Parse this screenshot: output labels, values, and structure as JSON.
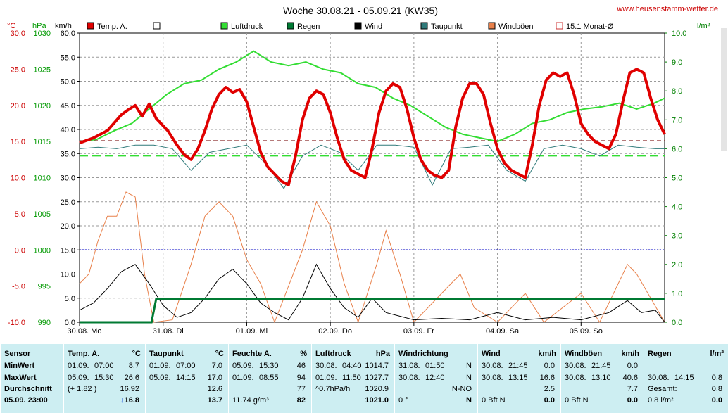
{
  "chart_data": {
    "type": "line",
    "title": "Woche 30.08.21 - 05.09.21 (KW35)",
    "source": "www.heusenstamm-wetter.de",
    "units": {
      "temp": "°C",
      "pressure": "hPa",
      "wind": "km/h",
      "rain": "l/m²"
    },
    "axes": {
      "temp": {
        "ticks": [
          "30.0",
          "25.0",
          "20.0",
          "15.0",
          "10.0",
          "5.0",
          "0.0",
          "-5.0",
          "-10.0"
        ],
        "range": [
          -10,
          30
        ],
        "color": "#cc0000"
      },
      "pressure": {
        "ticks": [
          "1030",
          "1025",
          "1020",
          "1015",
          "1010",
          "1005",
          "1000",
          "995",
          "990"
        ],
        "range": [
          990,
          1030
        ],
        "color": "#009900"
      },
      "wind": {
        "ticks": [
          "60.0",
          "55.0",
          "50.0",
          "45.0",
          "40.0",
          "35.0",
          "30.0",
          "25.0",
          "20.0",
          "15.0",
          "10.0",
          "5.0",
          "0.0"
        ],
        "range": [
          0,
          60
        ],
        "color": "#000000"
      },
      "rain": {
        "ticks": [
          "10.0",
          "9.0",
          "8.0",
          "7.0",
          "6.0",
          "5.0",
          "4.0",
          "3.0",
          "2.0",
          "1.0",
          "0.0"
        ],
        "range": [
          0,
          10
        ],
        "color": "#008000"
      }
    },
    "days": [
      "30.08. Mo",
      "31.08. Di",
      "01.09. Mi",
      "02.09. Do",
      "03.09. Fr",
      "04.09. Sa",
      "05.09. So"
    ],
    "legend": [
      {
        "name": "Temp. A.",
        "color": "#e00000",
        "style": "fill",
        "text_color": "#cc0000"
      },
      {
        "name": "",
        "color": "#ffffff",
        "style": "fill",
        "text_color": "#000000"
      },
      {
        "name": "Luftdruck",
        "color": "#33dd33",
        "style": "fill",
        "text_color": "#000000"
      },
      {
        "name": "Regen",
        "color": "#007a33",
        "style": "fill",
        "text_color": "#000000"
      },
      {
        "name": "Wind",
        "color": "#000000",
        "style": "fill",
        "text_color": "#000000"
      },
      {
        "name": "Taupunkt",
        "color": "#2f7a7a",
        "style": "fill",
        "text_color": "#cc0000"
      },
      {
        "name": "Windböen",
        "color": "#e8804a",
        "style": "fill",
        "text_color": "#000000"
      },
      {
        "name": "15.1 Monat-Ø",
        "color": "#cc3333",
        "style": "outline",
        "text_color": "#cc0000"
      }
    ],
    "reference_lines": {
      "temp_month_avg": 15.1,
      "freezing": 0.0
    },
    "series": {
      "temperature": [
        [
          0,
          14.8
        ],
        [
          6,
          15.5
        ],
        [
          12,
          16.5
        ],
        [
          18,
          18.7
        ],
        [
          21,
          19.4
        ],
        [
          24,
          20.0
        ],
        [
          27,
          18.5
        ],
        [
          30,
          20.2
        ],
        [
          33,
          18.2
        ],
        [
          38,
          16.5
        ],
        [
          42,
          14.5
        ],
        [
          45,
          13.2
        ],
        [
          48,
          12.5
        ],
        [
          51,
          14.0
        ],
        [
          54,
          16.5
        ],
        [
          57,
          19.5
        ],
        [
          60,
          21.5
        ],
        [
          63,
          22.5
        ],
        [
          66,
          21.8
        ],
        [
          69,
          22.2
        ],
        [
          72,
          20.5
        ],
        [
          75,
          17.0
        ],
        [
          78,
          13.5
        ],
        [
          81,
          11.5
        ],
        [
          84,
          10.5
        ],
        [
          87,
          9.5
        ],
        [
          90,
          9.0
        ],
        [
          93,
          13.0
        ],
        [
          96,
          18.0
        ],
        [
          99,
          21.0
        ],
        [
          102,
          22.0
        ],
        [
          105,
          21.5
        ],
        [
          108,
          19.0
        ],
        [
          111,
          15.5
        ],
        [
          114,
          12.5
        ],
        [
          117,
          11.0
        ],
        [
          120,
          10.5
        ],
        [
          123,
          10.0
        ],
        [
          126,
          14.0
        ],
        [
          129,
          19.0
        ],
        [
          132,
          22.0
        ],
        [
          135,
          23.0
        ],
        [
          138,
          22.5
        ],
        [
          141,
          19.5
        ],
        [
          144,
          15.5
        ],
        [
          147,
          12.5
        ],
        [
          150,
          11.0
        ],
        [
          153,
          10.3
        ],
        [
          156,
          10.0
        ],
        [
          159,
          11.0
        ],
        [
          162,
          17.0
        ],
        [
          165,
          21.0
        ],
        [
          168,
          23.0
        ],
        [
          171,
          23.0
        ],
        [
          174,
          21.5
        ],
        [
          177,
          17.5
        ],
        [
          180,
          14.0
        ],
        [
          183,
          12.0
        ],
        [
          186,
          11.0
        ],
        [
          189,
          10.5
        ],
        [
          192,
          10.0
        ],
        [
          195,
          14.5
        ],
        [
          198,
          20.0
        ],
        [
          201,
          23.5
        ],
        [
          204,
          24.5
        ],
        [
          207,
          24.0
        ],
        [
          210,
          24.5
        ],
        [
          213,
          21.5
        ],
        [
          216,
          17.5
        ],
        [
          219,
          16.0
        ],
        [
          222,
          15.0
        ],
        [
          225,
          14.5
        ],
        [
          228,
          14.0
        ],
        [
          231,
          16.0
        ],
        [
          234,
          20.5
        ],
        [
          237,
          24.5
        ],
        [
          240,
          25.0
        ],
        [
          243,
          24.5
        ],
        [
          246,
          21.0
        ],
        [
          249,
          18.0
        ],
        [
          252,
          16.0
        ]
      ],
      "dewpoint": [
        [
          0,
          14.0
        ],
        [
          8,
          14.2
        ],
        [
          16,
          14.0
        ],
        [
          24,
          14.5
        ],
        [
          32,
          14.5
        ],
        [
          40,
          14.0
        ],
        [
          48,
          11.0
        ],
        [
          56,
          13.5
        ],
        [
          64,
          14.0
        ],
        [
          72,
          14.5
        ],
        [
          80,
          12.0
        ],
        [
          88,
          8.5
        ],
        [
          96,
          13.0
        ],
        [
          104,
          14.5
        ],
        [
          112,
          13.5
        ],
        [
          120,
          11.0
        ],
        [
          128,
          14.5
        ],
        [
          136,
          14.5
        ],
        [
          144,
          14.2
        ],
        [
          152,
          9.0
        ],
        [
          160,
          14.0
        ],
        [
          168,
          14.2
        ],
        [
          176,
          14.5
        ],
        [
          184,
          11.0
        ],
        [
          192,
          9.5
        ],
        [
          200,
          14.0
        ],
        [
          208,
          14.5
        ],
        [
          216,
          14.0
        ],
        [
          224,
          13.0
        ],
        [
          232,
          14.5
        ],
        [
          240,
          14.2
        ],
        [
          248,
          14.0
        ],
        [
          252,
          14.0
        ]
      ],
      "pressure": [
        [
          0,
          1015.0
        ],
        [
          10,
          1015.3
        ],
        [
          20,
          1016.5
        ],
        [
          30,
          1017.5
        ],
        [
          40,
          1019.5
        ],
        [
          50,
          1021.5
        ],
        [
          60,
          1023.0
        ],
        [
          70,
          1023.5
        ],
        [
          80,
          1025.0
        ],
        [
          90,
          1026.0
        ],
        [
          100,
          1027.5
        ],
        [
          110,
          1026.0
        ],
        [
          120,
          1025.5
        ],
        [
          130,
          1026.0
        ],
        [
          140,
          1025.0
        ],
        [
          150,
          1024.5
        ],
        [
          160,
          1023.0
        ],
        [
          170,
          1022.5
        ],
        [
          180,
          1021.0
        ],
        [
          190,
          1020.0
        ],
        [
          200,
          1018.5
        ],
        [
          210,
          1017.0
        ],
        [
          220,
          1016.0
        ],
        [
          230,
          1015.5
        ],
        [
          240,
          1015.0
        ],
        [
          250,
          1016.0
        ],
        [
          260,
          1017.5
        ],
        [
          270,
          1018.0
        ],
        [
          280,
          1019.0
        ],
        [
          290,
          1019.5
        ],
        [
          300,
          1019.8
        ],
        [
          310,
          1020.3
        ],
        [
          320,
          1019.5
        ],
        [
          330,
          1020.3
        ],
        [
          336,
          1021.0
        ]
      ],
      "wind": [
        [
          0,
          2.5
        ],
        [
          6,
          4.0
        ],
        [
          12,
          7.0
        ],
        [
          18,
          10.5
        ],
        [
          24,
          12.0
        ],
        [
          30,
          8.0
        ],
        [
          36,
          3.5
        ],
        [
          42,
          1.0
        ],
        [
          48,
          2.0
        ],
        [
          54,
          5.0
        ],
        [
          60,
          9.0
        ],
        [
          66,
          11.0
        ],
        [
          72,
          8.0
        ],
        [
          78,
          4.0
        ],
        [
          84,
          2.0
        ],
        [
          90,
          0.5
        ],
        [
          96,
          5.0
        ],
        [
          102,
          12.0
        ],
        [
          108,
          7.0
        ],
        [
          114,
          3.0
        ],
        [
          120,
          1.0
        ],
        [
          126,
          5.0
        ],
        [
          132,
          2.0
        ],
        [
          144,
          0.5
        ],
        [
          156,
          0.8
        ],
        [
          168,
          0.5
        ],
        [
          180,
          2.0
        ],
        [
          192,
          0.5
        ],
        [
          204,
          1.0
        ],
        [
          216,
          0.5
        ],
        [
          228,
          2.0
        ],
        [
          236,
          4.5
        ],
        [
          242,
          2.0
        ],
        [
          248,
          2.5
        ],
        [
          252,
          0.0
        ]
      ],
      "gusts": [
        [
          0,
          8.0
        ],
        [
          4,
          10.0
        ],
        [
          8,
          17.0
        ],
        [
          12,
          22.0
        ],
        [
          16,
          22.0
        ],
        [
          20,
          27.0
        ],
        [
          24,
          26.0
        ],
        [
          28,
          10.0
        ],
        [
          32,
          0.0
        ],
        [
          40,
          0.5
        ],
        [
          48,
          12.0
        ],
        [
          54,
          22.0
        ],
        [
          60,
          25.0
        ],
        [
          66,
          22.0
        ],
        [
          72,
          13.0
        ],
        [
          78,
          8.0
        ],
        [
          84,
          0.0
        ],
        [
          96,
          15.0
        ],
        [
          102,
          25.0
        ],
        [
          108,
          20.0
        ],
        [
          114,
          8.0
        ],
        [
          120,
          0.0
        ],
        [
          128,
          12.0
        ],
        [
          132,
          19.0
        ],
        [
          138,
          10.0
        ],
        [
          144,
          0.0
        ],
        [
          156,
          6.0
        ],
        [
          164,
          10.0
        ],
        [
          170,
          3.0
        ],
        [
          180,
          0.0
        ],
        [
          192,
          6.0
        ],
        [
          200,
          0.0
        ],
        [
          216,
          6.0
        ],
        [
          224,
          0.0
        ],
        [
          236,
          12.0
        ],
        [
          240,
          10.0
        ],
        [
          246,
          5.0
        ],
        [
          252,
          0.0
        ]
      ],
      "rain": [
        [
          0,
          0.0
        ],
        [
          31,
          0.0
        ],
        [
          33,
          0.8
        ],
        [
          252,
          0.8
        ]
      ]
    }
  },
  "stats": {
    "columns": [
      {
        "header": "Sensor",
        "unit": "",
        "rows": [
          [
            "MinWert",
            "",
            ""
          ],
          [
            "MaxWert",
            "",
            ""
          ],
          [
            "Durchschnitt",
            "",
            ""
          ]
        ],
        "current": [
          "05.09. 23:00",
          ""
        ]
      },
      {
        "header": "Temp. A.",
        "unit": "°C",
        "rows": [
          [
            "01.09.",
            "07:00",
            "8.7"
          ],
          [
            "05.09.",
            "15:30",
            "26.6"
          ],
          [
            "(+ 1.82 )",
            "",
            "16.92"
          ]
        ],
        "current": [
          "↓",
          "16.8"
        ]
      },
      {
        "header": "Taupunkt",
        "unit": "°C",
        "rows": [
          [
            "01.09.",
            "07:00",
            "7.0"
          ],
          [
            "05.09.",
            "14:15",
            "17.0"
          ],
          [
            "",
            "",
            "12.6"
          ]
        ],
        "current": [
          "",
          "13.7"
        ]
      },
      {
        "header": "Feuchte A.",
        "unit": "%",
        "rows": [
          [
            "05.09.",
            "15:30",
            "46"
          ],
          [
            "01.09.",
            "08:55",
            "94"
          ],
          [
            "",
            "",
            "77"
          ]
        ],
        "current": [
          "11.74 g/m³",
          "82"
        ]
      },
      {
        "header": "Luftdruck",
        "unit": "hPa",
        "rows": [
          [
            "30.08.",
            "04:40",
            "1014.7"
          ],
          [
            "01.09.",
            "11:50",
            "1027.7"
          ],
          [
            "^0.7hPa/h",
            "",
            "1020.9"
          ]
        ],
        "current": [
          "",
          "1021.0"
        ]
      },
      {
        "header": "Windrichtung",
        "unit": "",
        "rows": [
          [
            "31.08.",
            "01:50",
            "N"
          ],
          [
            "30.08.",
            "12:40",
            "N"
          ],
          [
            "",
            "",
            "N-NO"
          ]
        ],
        "current": [
          "0 °",
          "N"
        ]
      },
      {
        "header": "Wind",
        "unit": "km/h",
        "rows": [
          [
            "30.08.",
            "21:45",
            "0.0"
          ],
          [
            "30.08.",
            "13:15",
            "16.6"
          ],
          [
            "",
            "",
            "2.5"
          ]
        ],
        "current": [
          "0 Bft N",
          "0.0"
        ]
      },
      {
        "header": "Windböen",
        "unit": "km/h",
        "rows": [
          [
            "30.08.",
            "21:45",
            "0.0"
          ],
          [
            "30.08.",
            "13:10",
            "40.6"
          ],
          [
            "",
            "",
            "7.7"
          ]
        ],
        "current": [
          "0 Bft N",
          "0.0"
        ]
      },
      {
        "header": "Regen",
        "unit": "l/m²",
        "rows": [
          [
            "",
            "",
            ""
          ],
          [
            "30.08.",
            "14:15",
            "0.8"
          ],
          [
            "Gesamt:",
            "",
            "0.8"
          ]
        ],
        "current": [
          "0.8 l/m²",
          "0.0"
        ]
      }
    ]
  }
}
